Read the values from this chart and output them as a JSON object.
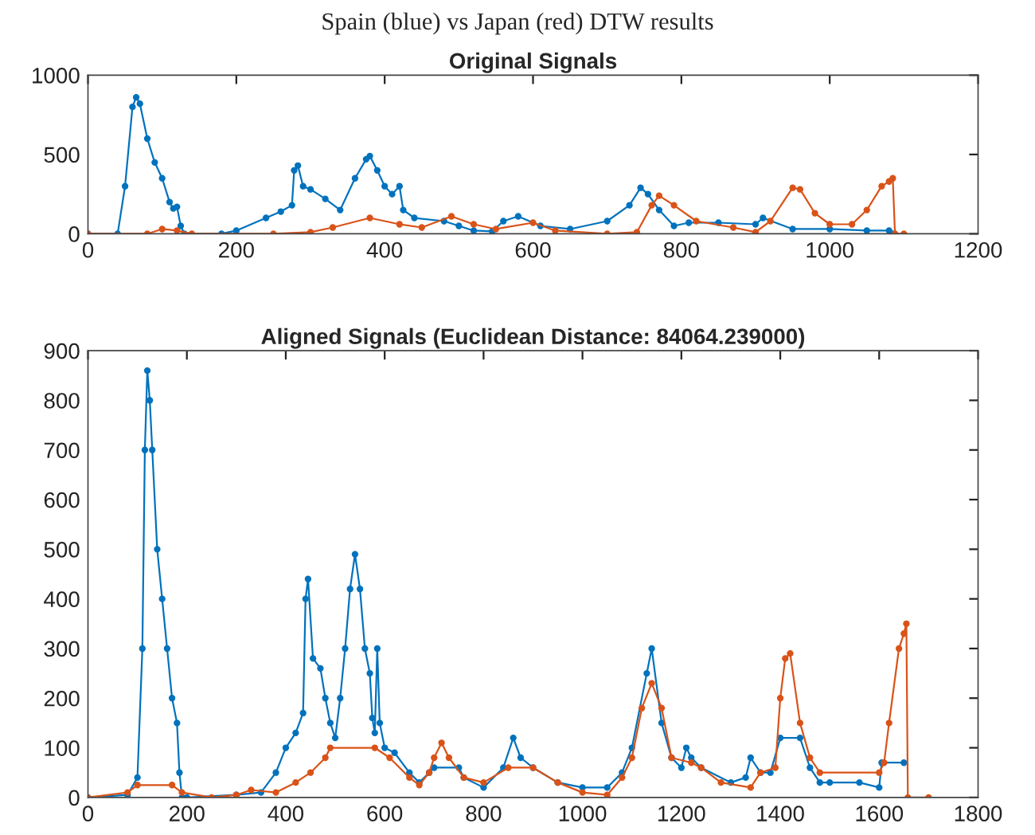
{
  "chart_data": [
    {
      "type": "line",
      "title": "Spain (blue) vs Japan (red) DTW results",
      "subtitle": "Original Signals",
      "marker": "circle",
      "grid": false,
      "legend": false,
      "xlim": [
        0,
        1200
      ],
      "xticks": [
        0,
        200,
        400,
        600,
        800,
        1000,
        1200
      ],
      "ylim": [
        0,
        1000
      ],
      "yticks": [
        0,
        500,
        1000
      ],
      "series": [
        {
          "color": "#0072bd",
          "x": [
            0,
            40,
            50,
            60,
            65,
            70,
            80,
            90,
            100,
            110,
            115,
            120,
            125,
            130,
            180,
            200,
            240,
            260,
            275,
            278,
            283,
            290,
            300,
            320,
            340,
            360,
            375,
            380,
            390,
            400,
            410,
            420,
            425,
            440,
            480,
            500,
            520,
            545,
            560,
            580,
            610,
            650,
            700,
            730,
            745,
            755,
            770,
            790,
            810,
            850,
            900,
            910,
            950,
            1000,
            1050,
            1080,
            1085
          ],
          "values": [
            0,
            0,
            300,
            800,
            860,
            820,
            600,
            450,
            350,
            200,
            160,
            170,
            50,
            0,
            0,
            20,
            100,
            140,
            180,
            400,
            430,
            300,
            280,
            220,
            150,
            350,
            470,
            490,
            400,
            300,
            250,
            300,
            150,
            100,
            80,
            50,
            20,
            15,
            80,
            110,
            50,
            30,
            80,
            180,
            290,
            250,
            150,
            50,
            70,
            70,
            60,
            100,
            30,
            30,
            20,
            20,
            0
          ]
        },
        {
          "color": "#d95319",
          "x": [
            0,
            80,
            100,
            120,
            140,
            250,
            300,
            330,
            380,
            420,
            450,
            490,
            520,
            550,
            600,
            630,
            700,
            740,
            760,
            770,
            790,
            820,
            870,
            900,
            920,
            950,
            960,
            980,
            1000,
            1030,
            1050,
            1070,
            1080,
            1085,
            1088,
            1100
          ],
          "values": [
            0,
            0,
            30,
            20,
            0,
            0,
            10,
            40,
            100,
            60,
            40,
            110,
            60,
            30,
            70,
            20,
            0,
            10,
            180,
            240,
            180,
            80,
            40,
            10,
            80,
            290,
            280,
            130,
            60,
            60,
            150,
            300,
            330,
            350,
            0,
            0
          ]
        }
      ]
    },
    {
      "type": "line",
      "title": "Aligned Signals (Euclidean Distance: 84064.239000)",
      "marker": "circle",
      "grid": false,
      "legend": false,
      "xlim": [
        0,
        1800
      ],
      "xticks": [
        0,
        200,
        400,
        600,
        800,
        1000,
        1200,
        1400,
        1600,
        1800
      ],
      "ylim": [
        0,
        900
      ],
      "yticks": [
        0,
        100,
        200,
        300,
        400,
        500,
        600,
        700,
        800,
        900
      ],
      "series": [
        {
          "color": "#0072bd",
          "x": [
            0,
            80,
            100,
            110,
            115,
            120,
            125,
            130,
            140,
            150,
            160,
            170,
            180,
            185,
            190,
            200,
            300,
            350,
            380,
            400,
            420,
            435,
            440,
            445,
            455,
            470,
            480,
            490,
            500,
            510,
            520,
            530,
            540,
            550,
            560,
            570,
            575,
            580,
            585,
            590,
            600,
            620,
            650,
            670,
            690,
            700,
            750,
            760,
            800,
            840,
            860,
            875,
            900,
            950,
            1000,
            1050,
            1080,
            1100,
            1130,
            1140,
            1160,
            1180,
            1200,
            1210,
            1220,
            1240,
            1300,
            1330,
            1340,
            1360,
            1380,
            1400,
            1440,
            1460,
            1480,
            1500,
            1560,
            1600,
            1605,
            1650
          ],
          "values": [
            0,
            5,
            40,
            300,
            700,
            860,
            800,
            700,
            500,
            400,
            300,
            200,
            150,
            50,
            0,
            0,
            5,
            10,
            50,
            100,
            130,
            170,
            400,
            440,
            280,
            260,
            200,
            150,
            120,
            200,
            300,
            420,
            490,
            420,
            300,
            250,
            160,
            130,
            300,
            150,
            100,
            90,
            50,
            30,
            50,
            60,
            60,
            40,
            20,
            60,
            120,
            80,
            60,
            30,
            20,
            20,
            50,
            100,
            250,
            300,
            150,
            80,
            60,
            100,
            80,
            60,
            30,
            40,
            80,
            50,
            50,
            120,
            120,
            60,
            30,
            30,
            30,
            20,
            70,
            70
          ]
        },
        {
          "color": "#d95319",
          "x": [
            0,
            80,
            100,
            170,
            190,
            250,
            300,
            330,
            380,
            420,
            450,
            480,
            490,
            580,
            610,
            650,
            670,
            690,
            700,
            715,
            730,
            760,
            800,
            850,
            900,
            950,
            1000,
            1050,
            1080,
            1100,
            1120,
            1140,
            1160,
            1180,
            1220,
            1240,
            1280,
            1340,
            1360,
            1390,
            1400,
            1410,
            1420,
            1440,
            1460,
            1480,
            1600,
            1610,
            1620,
            1640,
            1650,
            1655,
            1658,
            1700
          ],
          "values": [
            0,
            10,
            25,
            25,
            10,
            0,
            5,
            15,
            10,
            30,
            50,
            80,
            100,
            100,
            80,
            40,
            25,
            50,
            80,
            110,
            80,
            40,
            30,
            60,
            60,
            30,
            10,
            5,
            40,
            80,
            180,
            230,
            180,
            80,
            70,
            60,
            30,
            20,
            50,
            60,
            200,
            280,
            290,
            150,
            80,
            50,
            50,
            70,
            150,
            300,
            330,
            350,
            0,
            0
          ]
        }
      ]
    }
  ]
}
